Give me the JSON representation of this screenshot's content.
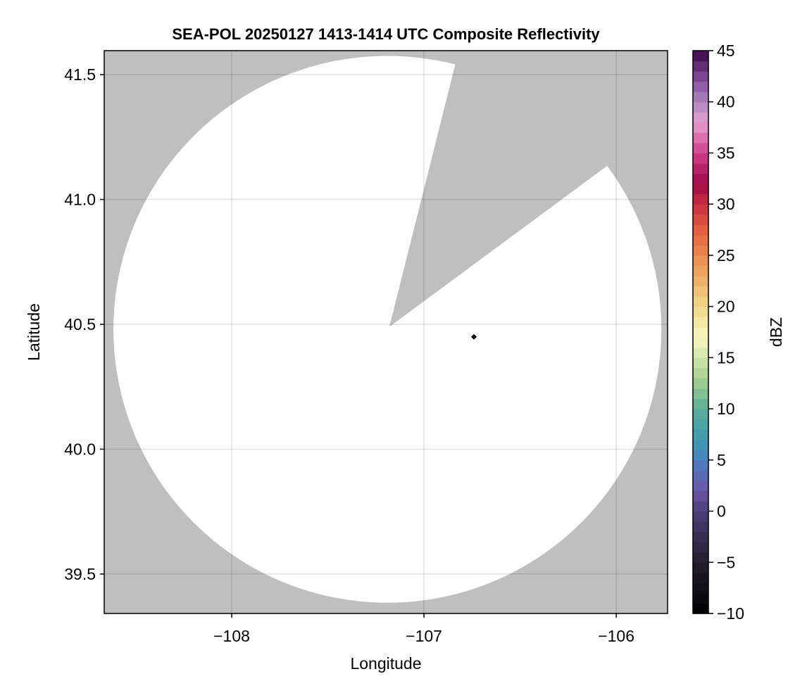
{
  "chart_data": {
    "type": "heatmap",
    "title": "SEA-POL 20250127 1413-1414 UTC Composite Reflectivity",
    "xlabel": "Longitude",
    "ylabel": "Latitude",
    "xlim": [
      -108.663,
      -105.733
    ],
    "ylim": [
      39.342,
      41.596
    ],
    "xticks": [
      -108,
      -107,
      -106
    ],
    "xtick_labels": [
      "−108",
      "−107",
      "−106"
    ],
    "yticks": [
      39.5,
      40.0,
      40.5,
      41.0,
      41.5
    ],
    "ytick_labels": [
      "39.5",
      "40.0",
      "40.5",
      "41.0",
      "41.5"
    ],
    "grid": true,
    "background_color": "#bfbfbf",
    "coverage": {
      "description_fill": "#ffffff",
      "center": [
        -107.19,
        40.48
      ],
      "radius_lon": 1.425,
      "radius_lat": 1.095
    },
    "blocked_sector": {
      "apex": [
        -107.18,
        40.49
      ],
      "ray1_end": [
        -106.842,
        41.527
      ],
      "ray2_end": [
        -106.066,
        41.124
      ],
      "color": "#bfbfbf"
    },
    "marker": {
      "lon": -106.74,
      "lat": 40.45,
      "shape": "diamond",
      "color": "#000000"
    },
    "colorbar": {
      "label": "dBZ",
      "range": [
        -10,
        45
      ],
      "step": 1,
      "ticks": [
        -10,
        -5,
        0,
        5,
        10,
        15,
        20,
        25,
        30,
        35,
        40,
        45
      ],
      "tick_labels": [
        "−10",
        "−5",
        "0",
        "5",
        "10",
        "15",
        "20",
        "25",
        "30",
        "35",
        "40",
        "45"
      ],
      "anchors": [
        [
          -10,
          "#000000"
        ],
        [
          -5,
          "#221e2e"
        ],
        [
          0,
          "#4a3f78"
        ],
        [
          2,
          "#6a55a8"
        ],
        [
          5,
          "#4a80c0"
        ],
        [
          7,
          "#3f9ab0"
        ],
        [
          10,
          "#5aae98"
        ],
        [
          13,
          "#a8d090"
        ],
        [
          17,
          "#f8f8c0"
        ],
        [
          20,
          "#f0d888"
        ],
        [
          24,
          "#ec9a58"
        ],
        [
          27,
          "#e86840"
        ],
        [
          30,
          "#c83040"
        ],
        [
          32,
          "#a00848"
        ],
        [
          35,
          "#d0408a"
        ],
        [
          38,
          "#e6a0d0"
        ],
        [
          40,
          "#ad86c0"
        ],
        [
          42,
          "#8a50a0"
        ],
        [
          45,
          "#3c0848"
        ]
      ]
    }
  }
}
